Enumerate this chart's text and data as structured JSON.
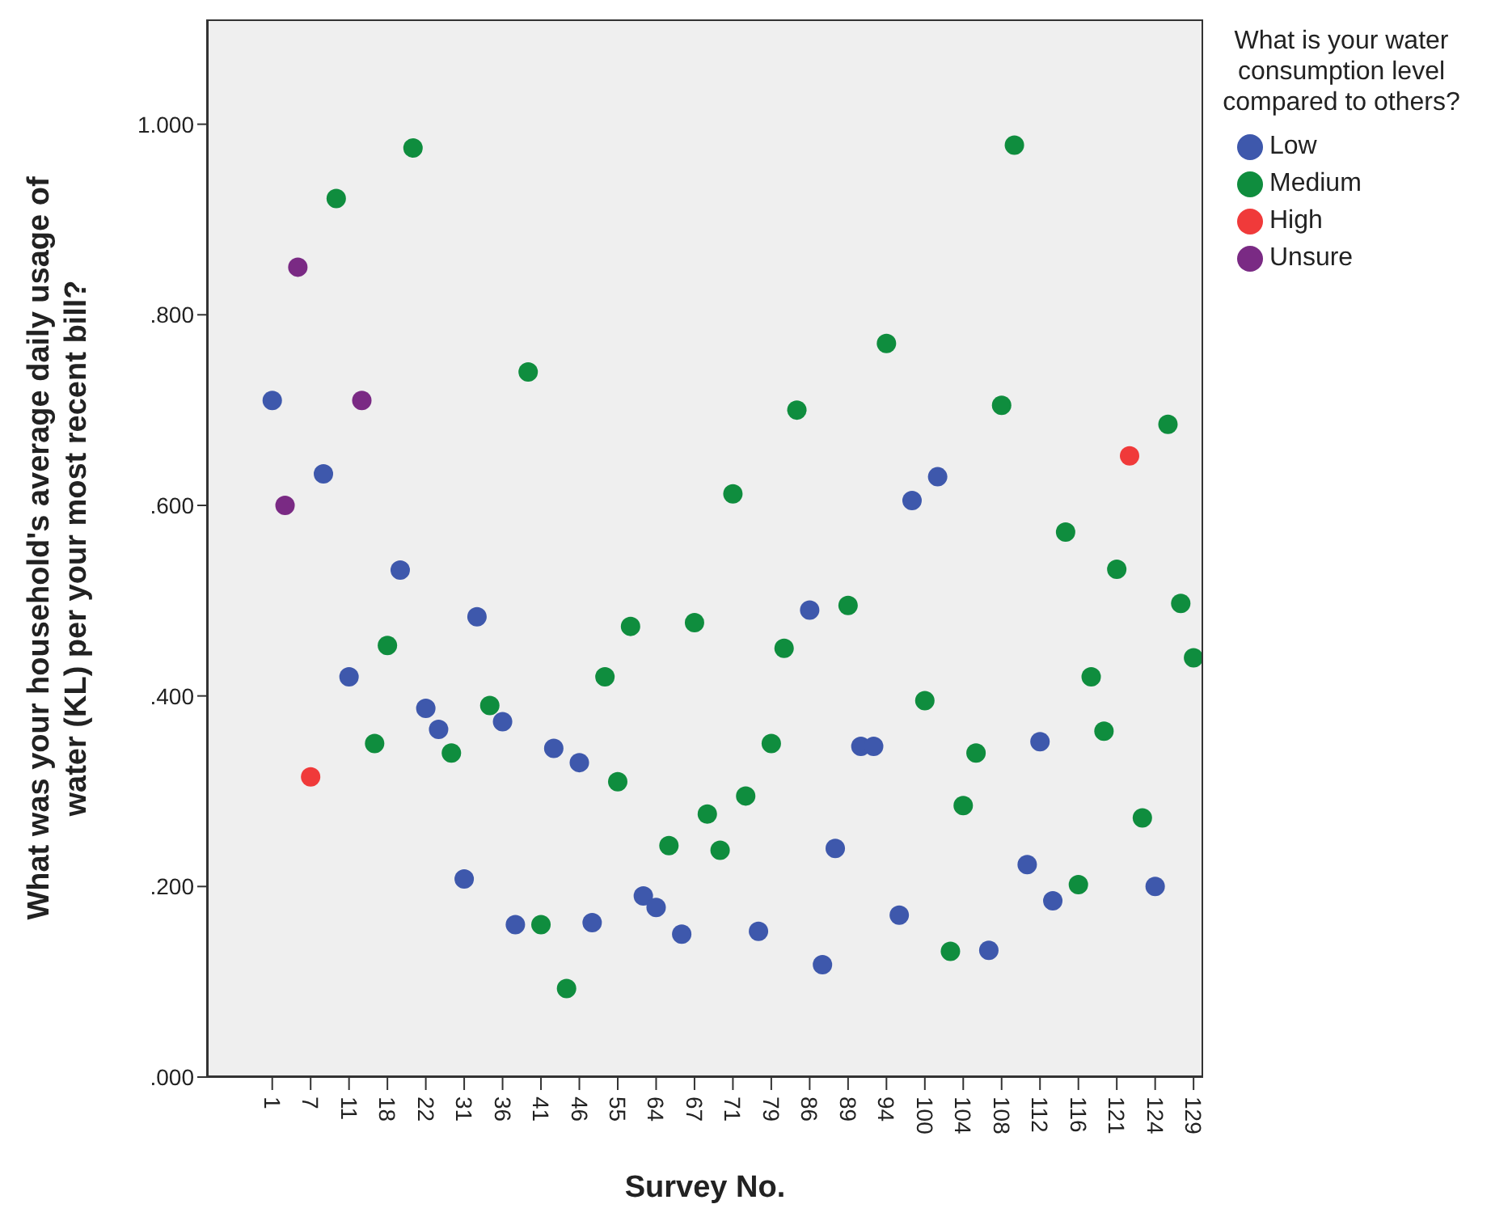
{
  "chart_data": {
    "type": "scatter",
    "xlabel": "Survey No.",
    "ylabel": "What was your household's average daily usage of water (KL) per your most recent bill?",
    "legend_title": "What is your water consumption level compared to others?",
    "legend": "right",
    "grid": false,
    "marker": "circle",
    "categories": [
      "1",
      null,
      null,
      "7",
      null,
      null,
      "11",
      null,
      null,
      "18",
      null,
      null,
      "22",
      null,
      null,
      "31",
      null,
      null,
      "36",
      null,
      null,
      "41",
      null,
      null,
      "46",
      null,
      null,
      "55",
      null,
      null,
      "64",
      null,
      null,
      "67",
      null,
      null,
      "71",
      null,
      null,
      "79",
      null,
      null,
      "86",
      null,
      null,
      "89",
      null,
      null,
      "94",
      null,
      null,
      "100",
      null,
      null,
      "104",
      null,
      null,
      "108",
      null,
      null,
      "112",
      null,
      null,
      "116",
      null,
      null,
      "121",
      null,
      null,
      "124",
      null,
      null,
      "129"
    ],
    "ylim": [
      0,
      1.11
    ],
    "yticks": [
      {
        "value": 0,
        "label": ".000"
      },
      {
        "value": 0.2,
        "label": ".200"
      },
      {
        "value": 0.4,
        "label": ".400"
      },
      {
        "value": 0.6,
        "label": ".600"
      },
      {
        "value": 0.8,
        "label": ".800"
      },
      {
        "value": 1,
        "label": "1.000"
      }
    ],
    "series": [
      {
        "name": "Low",
        "color": "#3e58ac",
        "values": [
          0.71,
          null,
          null,
          null,
          0.633,
          null,
          0.42,
          null,
          null,
          null,
          0.532,
          null,
          0.387,
          0.365,
          null,
          0.208,
          0.483,
          null,
          0.373,
          0.16,
          null,
          null,
          0.345,
          null,
          0.33,
          0.162,
          null,
          null,
          null,
          0.19,
          0.178,
          null,
          0.15,
          null,
          null,
          null,
          null,
          null,
          0.153,
          null,
          null,
          null,
          0.49,
          0.118,
          0.24,
          null,
          0.347,
          0.347,
          null,
          0.17,
          0.605,
          null,
          0.63,
          null,
          null,
          null,
          0.133,
          null,
          null,
          0.223,
          0.352,
          0.185,
          null,
          null,
          null,
          null,
          null,
          null,
          null,
          0.2,
          null,
          null,
          null
        ]
      },
      {
        "name": "Medium",
        "color": "#0f8d3e",
        "values": [
          null,
          null,
          null,
          null,
          null,
          0.922,
          null,
          null,
          0.35,
          0.453,
          null,
          0.975,
          null,
          null,
          0.34,
          null,
          null,
          0.39,
          null,
          null,
          0.74,
          0.16,
          null,
          0.093,
          null,
          null,
          0.42,
          0.31,
          0.473,
          null,
          null,
          0.243,
          null,
          0.477,
          0.276,
          0.238,
          0.612,
          0.295,
          null,
          0.35,
          0.45,
          0.7,
          null,
          null,
          null,
          0.495,
          null,
          null,
          0.77,
          null,
          null,
          0.395,
          null,
          0.132,
          0.285,
          0.34,
          null,
          0.705,
          0.978,
          null,
          null,
          null,
          0.572,
          0.202,
          0.42,
          0.363,
          0.533,
          null,
          0.272,
          null,
          0.685,
          0.497,
          0.44
        ]
      },
      {
        "name": "High",
        "color": "#f03a3a",
        "values": [
          null,
          null,
          null,
          0.315,
          null,
          null,
          null,
          null,
          null,
          null,
          null,
          null,
          null,
          null,
          null,
          null,
          null,
          null,
          null,
          null,
          null,
          null,
          null,
          null,
          null,
          null,
          null,
          null,
          null,
          null,
          null,
          null,
          null,
          null,
          null,
          null,
          null,
          null,
          null,
          null,
          null,
          null,
          null,
          null,
          null,
          null,
          null,
          null,
          null,
          null,
          null,
          null,
          null,
          null,
          null,
          null,
          null,
          null,
          null,
          null,
          null,
          null,
          null,
          null,
          null,
          null,
          null,
          0.652,
          null,
          null,
          null,
          null,
          null
        ]
      },
      {
        "name": "Unsure",
        "color": "#7a2a84",
        "values": [
          null,
          0.6,
          0.85,
          null,
          null,
          null,
          null,
          0.71,
          null,
          null,
          null,
          null,
          null,
          null,
          null,
          null,
          null,
          null,
          null,
          null,
          null,
          null,
          null,
          null,
          null,
          null,
          null,
          null,
          null,
          null,
          null,
          null,
          null,
          null,
          null,
          null,
          null,
          null,
          null,
          null,
          null,
          null,
          null,
          null,
          null,
          null,
          null,
          null,
          null,
          null,
          null,
          null,
          null,
          null,
          null,
          null,
          null,
          null,
          null,
          null,
          null,
          null,
          null,
          null,
          null,
          null,
          null,
          null,
          null,
          null,
          null,
          null,
          null
        ]
      }
    ]
  }
}
